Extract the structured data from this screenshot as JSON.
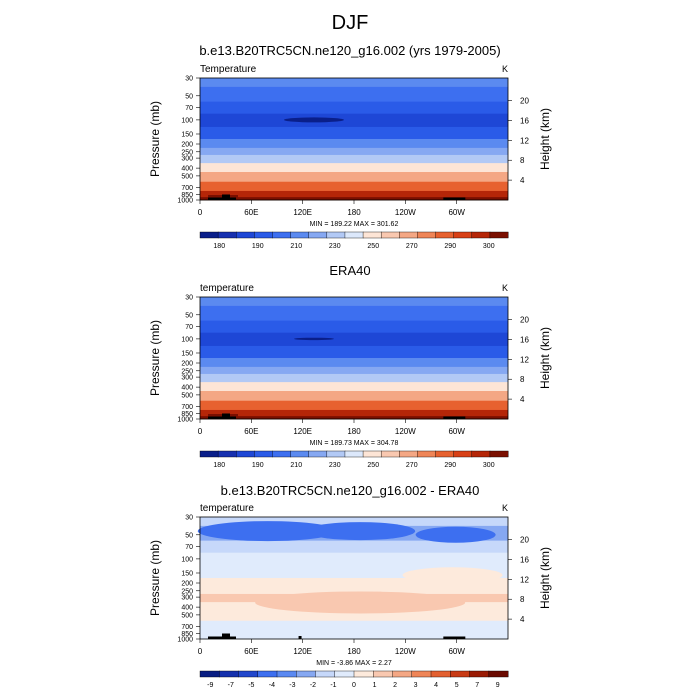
{
  "figure": {
    "title": "DJF",
    "subtitle_1": "b.e13.B20TRC5CN.ne120_g16.002 (yrs 1979-2005)",
    "subtitle_2": "ERA40",
    "subtitle_3": "b.e13.B20TRC5CN.ne120_g16.002 - ERA40"
  },
  "chart_data": [
    {
      "type": "heatmap",
      "title": "b.e13.B20TRC5CN.ne120_g16.002 (yrs 1979-2005)",
      "left_label": "Temperature",
      "units": "K",
      "ylabel": "Pressure (mb)",
      "ylabel_right": "Height (km)",
      "x_ticks": [
        "0",
        "60E",
        "120E",
        "180",
        "120W",
        "60W"
      ],
      "y_ticks": [
        "30",
        "50",
        "70",
        "100",
        "150",
        "200",
        "250",
        "300",
        "400",
        "500",
        "700",
        "850",
        "1000"
      ],
      "y_ticks_right": [
        "20",
        "16",
        "12",
        "8",
        "4"
      ],
      "stats": "MIN = 189.22   MAX = 301.62",
      "colorbar_labels": [
        "180",
        "190",
        "210",
        "230",
        "250",
        "270",
        "290",
        "300"
      ],
      "levels_by_pressure": [
        {
          "p": 30,
          "level": 5
        },
        {
          "p": 50,
          "level": 4
        },
        {
          "p": 70,
          "level": 3
        },
        {
          "p": 100,
          "level": 2
        },
        {
          "p": 150,
          "level": 3
        },
        {
          "p": 200,
          "level": 5
        },
        {
          "p": 250,
          "level": 6
        },
        {
          "p": 300,
          "level": 7
        },
        {
          "p": 400,
          "level": 9
        },
        {
          "p": 500,
          "level": 11
        },
        {
          "p": 700,
          "level": 13
        },
        {
          "p": 850,
          "level": 15
        },
        {
          "p": 1000,
          "level": 16
        }
      ]
    },
    {
      "type": "heatmap",
      "title": "ERA40",
      "left_label": "temperature",
      "units": "K",
      "ylabel": "Pressure (mb)",
      "ylabel_right": "Height (km)",
      "x_ticks": [
        "0",
        "60E",
        "120E",
        "180",
        "120W",
        "60W"
      ],
      "y_ticks": [
        "30",
        "50",
        "70",
        "100",
        "150",
        "200",
        "250",
        "300",
        "400",
        "500",
        "700",
        "850",
        "1000"
      ],
      "y_ticks_right": [
        "20",
        "16",
        "12",
        "8",
        "4"
      ],
      "stats": "MIN = 189.73   MAX = 304.78",
      "colorbar_labels": [
        "180",
        "190",
        "210",
        "230",
        "250",
        "270",
        "290",
        "300"
      ],
      "levels_by_pressure": [
        {
          "p": 30,
          "level": 5
        },
        {
          "p": 50,
          "level": 4
        },
        {
          "p": 70,
          "level": 3
        },
        {
          "p": 100,
          "level": 2
        },
        {
          "p": 150,
          "level": 3
        },
        {
          "p": 200,
          "level": 5
        },
        {
          "p": 250,
          "level": 6
        },
        {
          "p": 300,
          "level": 7
        },
        {
          "p": 400,
          "level": 9
        },
        {
          "p": 500,
          "level": 11
        },
        {
          "p": 700,
          "level": 13
        },
        {
          "p": 850,
          "level": 15
        },
        {
          "p": 1000,
          "level": 16
        }
      ]
    },
    {
      "type": "heatmap",
      "title": "b.e13.B20TRC5CN.ne120_g16.002 - ERA40",
      "left_label": "temperature",
      "units": "K",
      "ylabel": "Pressure (mb)",
      "ylabel_right": "Height (km)",
      "x_ticks": [
        "0",
        "60E",
        "120E",
        "180",
        "120W",
        "60W"
      ],
      "y_ticks": [
        "30",
        "50",
        "70",
        "100",
        "150",
        "200",
        "250",
        "300",
        "400",
        "500",
        "700",
        "850",
        "1000"
      ],
      "y_ticks_right": [
        "20",
        "16",
        "12",
        "8",
        "4"
      ],
      "stats": "MIN = -3.86   MAX =   2.27",
      "colorbar_labels": [
        "-9",
        "-7",
        "-5",
        "-4",
        "-3",
        "-2",
        "-1",
        "0",
        "1",
        "2",
        "3",
        "4",
        "5",
        "7",
        "9"
      ],
      "levels_by_pressure": [
        {
          "p": 30,
          "level": 6
        },
        {
          "p": 50,
          "level": 5
        },
        {
          "p": 70,
          "level": 6
        },
        {
          "p": 100,
          "level": 7
        },
        {
          "p": 150,
          "level": 7
        },
        {
          "p": 200,
          "level": 8
        },
        {
          "p": 250,
          "level": 8
        },
        {
          "p": 300,
          "level": 9
        },
        {
          "p": 400,
          "level": 8
        },
        {
          "p": 500,
          "level": 8
        },
        {
          "p": 700,
          "level": 7
        },
        {
          "p": 850,
          "level": 7
        },
        {
          "p": 1000,
          "level": 7
        }
      ]
    }
  ],
  "colors": {
    "temperature_palette": [
      "#0a1f8a",
      "#1630b0",
      "#1e47d6",
      "#2a5be8",
      "#3d6ff0",
      "#5b8af0",
      "#86a8f2",
      "#b2c9f5",
      "#dce8fb",
      "#fde5d6",
      "#f9c8b0",
      "#f4a784",
      "#ef8557",
      "#e7612f",
      "#d84016",
      "#b52608",
      "#7a0f00"
    ],
    "difference_palette": [
      "#081d82",
      "#1430ad",
      "#2147cc",
      "#3d6ff0",
      "#5a89f2",
      "#86a8f2",
      "#c6d8fa",
      "#e0ebfc",
      "#fdeadc",
      "#f9c8b0",
      "#f4a784",
      "#ef8557",
      "#e36030",
      "#c83a14",
      "#9a1b04",
      "#6a0a00"
    ]
  }
}
